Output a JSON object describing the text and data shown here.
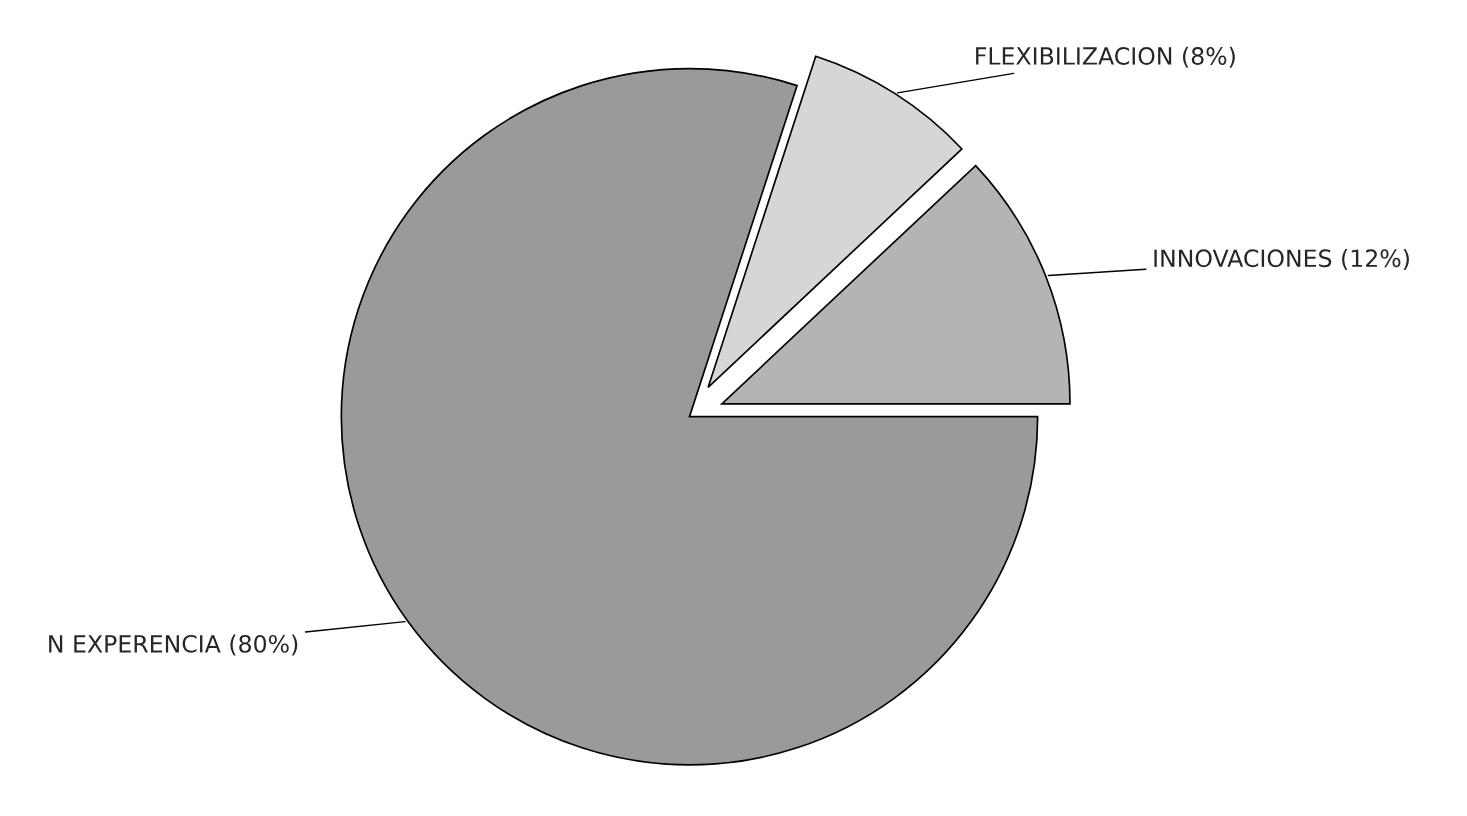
{
  "chart_data": {
    "type": "pie",
    "categories": [
      "INNOVACIONES (12%)",
      "FLEXIBILIZACION (8%)",
      "N EXPERENCIA (80%)"
    ],
    "values": [
      12,
      8,
      80
    ],
    "colors": [
      "#b4b4b4",
      "#d6d6d6",
      "#9a9a9a"
    ]
  }
}
